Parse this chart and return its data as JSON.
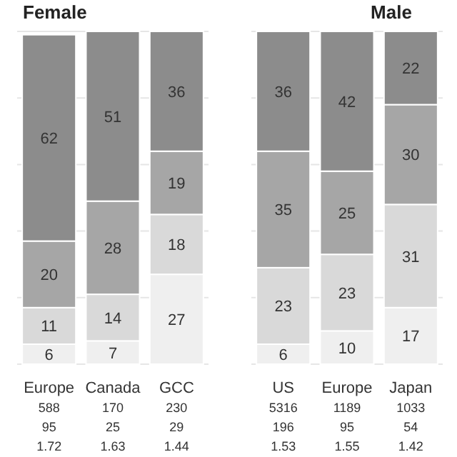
{
  "chart_data": [
    {
      "type": "bar",
      "title": "Female",
      "stacked": true,
      "data_labels": true,
      "grid": "y",
      "tick_labels": "x",
      "ylim": [
        0,
        100
      ],
      "yticks": [
        0,
        20,
        40,
        60,
        80,
        100
      ],
      "categories": [
        "Europe\n588\n95\n1.72",
        "Canada\n170\n25\n1.63",
        "GCC\n230\n29\n1.44"
      ],
      "series": [
        {
          "color": "#efefef",
          "values": [
            6,
            7,
            27
          ]
        },
        {
          "color": "#d9d9d9",
          "values": [
            11,
            14,
            18
          ]
        },
        {
          "color": "#a6a6a6",
          "values": [
            20,
            28,
            19
          ]
        },
        {
          "color": "#8c8c8c",
          "values": [
            62,
            51,
            36
          ]
        }
      ]
    },
    {
      "type": "bar",
      "title": "Male",
      "stacked": true,
      "data_labels": true,
      "grid": "y",
      "tick_labels": "x",
      "ylim": [
        0,
        100
      ],
      "yticks": [
        0,
        20,
        40,
        60,
        80,
        100
      ],
      "categories": [
        "US\n5316\n196\n1.53",
        "Europe\n1189\n95\n1.55",
        "Japan\n1033\n54\n1.42"
      ],
      "series": [
        {
          "color": "#efefef",
          "values": [
            6,
            10,
            17
          ]
        },
        {
          "color": "#d9d9d9",
          "values": [
            23,
            23,
            31
          ]
        },
        {
          "color": "#a6a6a6",
          "values": [
            35,
            25,
            30
          ]
        },
        {
          "color": "#8c8c8c",
          "values": [
            36,
            42,
            22
          ]
        }
      ]
    }
  ]
}
